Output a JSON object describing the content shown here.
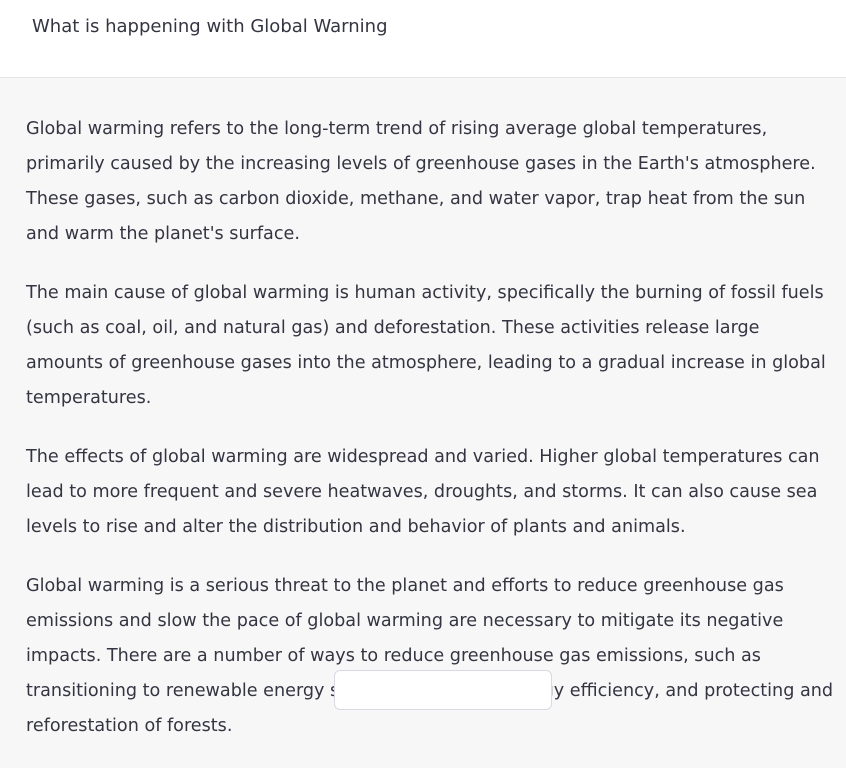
{
  "conversation": {
    "user_message": "What is happening with Global Warning",
    "response_paragraphs": [
      "Global warming refers to the long-term trend of rising average global temperatures, primarily caused by the increasing levels of greenhouse gases in the Earth's atmosphere. These gases, such as carbon dioxide, methane, and water vapor, trap heat from the sun and warm the planet's surface.",
      "The main cause of global warming is human activity, specifically the burning of fossil fuels (such as coal, oil, and natural gas) and deforestation. These activities release large amounts of greenhouse gases into the atmosphere, leading to a gradual increase in global temperatures.",
      "The effects of global warming are widespread and varied. Higher global temperatures can lead to more frequent and severe heatwaves, droughts, and storms. It can also cause sea levels to rise and alter the distribution and behavior of plants and animals.",
      "Global warming is a serious threat to the planet and efforts to reduce greenhouse gas emissions and slow the pace of global warming are necessary to mitigate its negative impacts. There are a number of ways to reduce greenhouse gas emissions, such as transitioning to renewable energy sources, improving energy efficiency, and protecting and reforestation of forests."
    ]
  },
  "colors": {
    "user_background": "#ffffff",
    "assistant_background": "#f7f7f8",
    "text": "#343541"
  }
}
